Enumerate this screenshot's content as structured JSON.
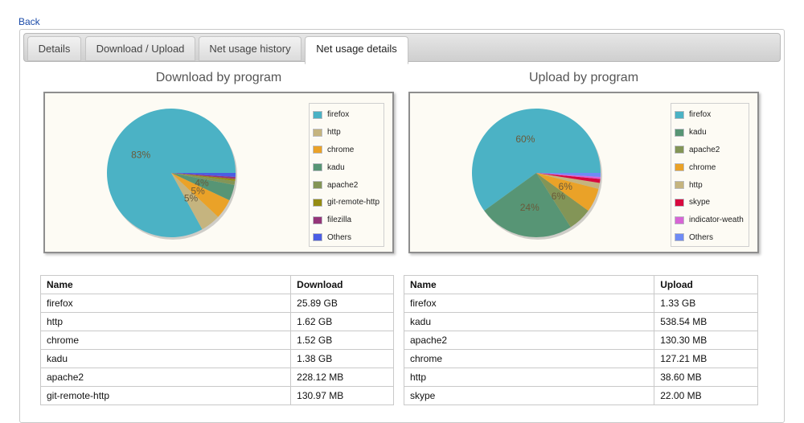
{
  "nav": {
    "back_label": "Back"
  },
  "tabs": [
    {
      "label": "Details"
    },
    {
      "label": "Download / Upload"
    },
    {
      "label": "Net usage history"
    },
    {
      "label": "Net usage details"
    }
  ],
  "chart_data": [
    {
      "type": "pie",
      "title": "Download by program",
      "legend_position": "right",
      "slices": [
        {
          "label": "firefox",
          "value": 83,
          "color": "#4bb2c5",
          "pct_label": "83%"
        },
        {
          "label": "http",
          "value": 5,
          "color": "#c5b47f",
          "pct_label": "5%"
        },
        {
          "label": "chrome",
          "value": 5,
          "color": "#eaa228",
          "pct_label": "5%"
        },
        {
          "label": "kadu",
          "value": 4,
          "color": "#579575",
          "pct_label": "4%"
        },
        {
          "label": "apache2",
          "value": 1,
          "color": "#839557",
          "pct_label": ""
        },
        {
          "label": "git-remote-http",
          "value": 0.5,
          "color": "#958c12",
          "pct_label": ""
        },
        {
          "label": "filezilla",
          "value": 0.5,
          "color": "#953579",
          "pct_label": ""
        },
        {
          "label": "Others",
          "value": 1,
          "color": "#4b5de4",
          "pct_label": ""
        }
      ]
    },
    {
      "type": "pie",
      "title": "Upload by program",
      "legend_position": "right",
      "slices": [
        {
          "label": "firefox",
          "value": 60,
          "color": "#4bb2c5",
          "pct_label": "60%"
        },
        {
          "label": "kadu",
          "value": 24,
          "color": "#579575",
          "pct_label": "24%"
        },
        {
          "label": "apache2",
          "value": 6,
          "color": "#839557",
          "pct_label": "6%"
        },
        {
          "label": "chrome",
          "value": 6,
          "color": "#eaa228",
          "pct_label": "6%"
        },
        {
          "label": "http",
          "value": 1.5,
          "color": "#c5b47f",
          "pct_label": ""
        },
        {
          "label": "skype",
          "value": 1,
          "color": "#d8093f",
          "pct_label": ""
        },
        {
          "label": "indicator-weath",
          "value": 0.5,
          "color": "#d765d6",
          "pct_label": ""
        },
        {
          "label": "Others",
          "value": 1,
          "color": "#6f8bf5",
          "pct_label": ""
        }
      ]
    }
  ],
  "download_table": {
    "headers": [
      "Name",
      "Download"
    ],
    "rows": [
      [
        "firefox",
        "25.89 GB"
      ],
      [
        "http",
        "1.62 GB"
      ],
      [
        "chrome",
        "1.52 GB"
      ],
      [
        "kadu",
        "1.38 GB"
      ],
      [
        "apache2",
        "228.12 MB"
      ],
      [
        "git-remote-http",
        "130.97 MB"
      ]
    ]
  },
  "upload_table": {
    "headers": [
      "Name",
      "Upload"
    ],
    "rows": [
      [
        "firefox",
        "1.33 GB"
      ],
      [
        "kadu",
        "538.54 MB"
      ],
      [
        "apache2",
        "130.30 MB"
      ],
      [
        "chrome",
        "127.21 MB"
      ],
      [
        "http",
        "38.60 MB"
      ],
      [
        "skype",
        "22.00 MB"
      ]
    ]
  }
}
